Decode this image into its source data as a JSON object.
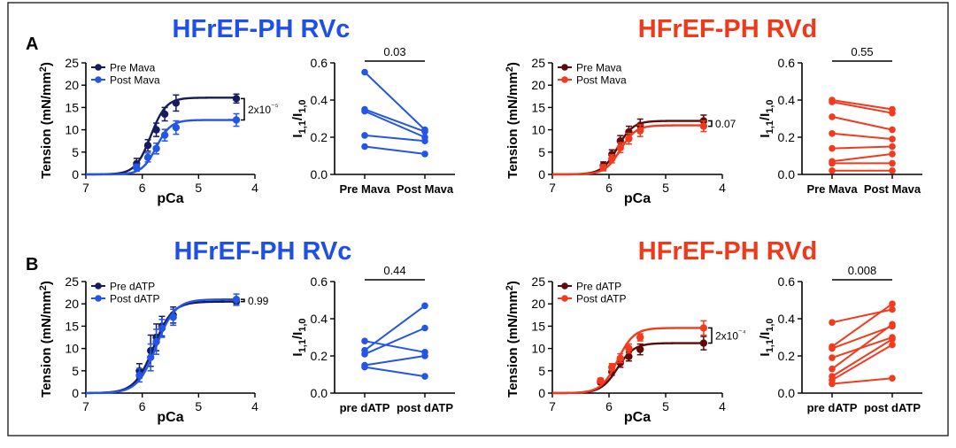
{
  "panel_labels": [
    "A",
    "B"
  ],
  "colors": {
    "rvc_dark": "#141C5E",
    "rvc_light": "#2455E6",
    "rvd_dark": "#5C0A0A",
    "rvd_light": "#F23A1E",
    "title_blue": "#1F4FE8",
    "title_red": "#F0391A",
    "axis": "#000000",
    "frame": "#333333"
  },
  "chart_data": [
    {
      "id": "a-rvc-tension",
      "type": "line",
      "title": "HFrEF-PH RVc",
      "xlabel": "pCa",
      "ylabel": "Tension (mN/mm²)",
      "xlim": [
        7,
        4
      ],
      "ylim": [
        0,
        25
      ],
      "x_ticks": [
        "7",
        "6",
        "5",
        "4"
      ],
      "y_ticks": [
        "0",
        "5",
        "10",
        "15",
        "20",
        "25"
      ],
      "legend_position": "top-left",
      "comparison_label": "2x10⁻⁵",
      "series": [
        {
          "name": "Pre Mava",
          "color_key": "rvc_dark",
          "fit": {
            "top": 17.2,
            "pca50": 5.85,
            "hill": 3.2
          },
          "points": [
            {
              "x": 6.1,
              "y": 2.4,
              "err": 1.2
            },
            {
              "x": 5.9,
              "y": 6.5,
              "err": 1.3
            },
            {
              "x": 5.75,
              "y": 10.0,
              "err": 1.5
            },
            {
              "x": 5.6,
              "y": 13.5,
              "err": 1.5
            },
            {
              "x": 5.4,
              "y": 16.0,
              "err": 1.8
            },
            {
              "x": 4.33,
              "y": 17.0,
              "err": 1.0
            }
          ]
        },
        {
          "name": "Post Mava",
          "color_key": "rvc_light",
          "fit": {
            "top": 12.2,
            "pca50": 5.75,
            "hill": 3.4
          },
          "points": [
            {
              "x": 6.1,
              "y": 1.5,
              "err": 0.8
            },
            {
              "x": 5.9,
              "y": 3.8,
              "err": 1.0
            },
            {
              "x": 5.75,
              "y": 5.8,
              "err": 1.2
            },
            {
              "x": 5.6,
              "y": 8.8,
              "err": 1.3
            },
            {
              "x": 5.4,
              "y": 10.5,
              "err": 1.5
            },
            {
              "x": 4.33,
              "y": 12.2,
              "err": 1.4
            }
          ]
        }
      ]
    },
    {
      "id": "a-rvc-ratio",
      "type": "scatter",
      "title": "",
      "ylabel": "I1,1/I1,0",
      "ylim": [
        0,
        0.6
      ],
      "y_ticks": [
        "0.0",
        "0.2",
        "0.4",
        "0.6"
      ],
      "categories": [
        "Pre Mava",
        "Post Mava"
      ],
      "p_value": "0.03",
      "color_key": "rvc_light",
      "pairs": [
        [
          0.55,
          0.24
        ],
        [
          0.35,
          0.23
        ],
        [
          0.34,
          0.2
        ],
        [
          0.21,
          0.18
        ],
        [
          0.15,
          0.11
        ]
      ]
    },
    {
      "id": "a-rvd-tension",
      "type": "line",
      "title": "HFrEF-PH RVd",
      "xlabel": "pCa",
      "ylabel": "Tension (mN/mm²)",
      "xlim": [
        7,
        4
      ],
      "ylim": [
        0,
        25
      ],
      "x_ticks": [
        "7",
        "6",
        "5",
        "4"
      ],
      "y_ticks": [
        "0",
        "5",
        "10",
        "15",
        "20",
        "25"
      ],
      "legend_position": "top-left",
      "comparison_label": "0.07",
      "series": [
        {
          "name": "Pre Mava",
          "color_key": "rvd_dark",
          "fit": {
            "top": 12.0,
            "pca50": 5.85,
            "hill": 3.2
          },
          "points": [
            {
              "x": 6.1,
              "y": 2.0,
              "err": 0.8
            },
            {
              "x": 5.95,
              "y": 4.5,
              "err": 1.0
            },
            {
              "x": 5.8,
              "y": 7.5,
              "err": 1.2
            },
            {
              "x": 5.65,
              "y": 9.5,
              "err": 1.3
            },
            {
              "x": 5.45,
              "y": 11.0,
              "err": 1.4
            },
            {
              "x": 4.33,
              "y": 12.0,
              "err": 1.3
            }
          ]
        },
        {
          "name": "Post Mava",
          "color_key": "rvd_light",
          "fit": {
            "top": 11.0,
            "pca50": 5.8,
            "hill": 3.2
          },
          "points": [
            {
              "x": 6.1,
              "y": 1.5,
              "err": 0.7
            },
            {
              "x": 5.95,
              "y": 3.5,
              "err": 0.9
            },
            {
              "x": 5.8,
              "y": 6.0,
              "err": 1.1
            },
            {
              "x": 5.65,
              "y": 8.0,
              "err": 1.2
            },
            {
              "x": 5.45,
              "y": 9.8,
              "err": 1.3
            },
            {
              "x": 4.33,
              "y": 10.8,
              "err": 1.2
            }
          ]
        }
      ]
    },
    {
      "id": "a-rvd-ratio",
      "type": "scatter",
      "title": "",
      "ylabel": "I1,1/I1,0",
      "ylim": [
        0,
        0.6
      ],
      "y_ticks": [
        "0.0",
        "0.2",
        "0.4",
        "0.6"
      ],
      "categories": [
        "Pre Mava",
        "Post Mava"
      ],
      "p_value": "0.55",
      "color_key": "rvd_light",
      "pairs": [
        [
          0.4,
          0.35
        ],
        [
          0.39,
          0.33
        ],
        [
          0.31,
          0.24
        ],
        [
          0.22,
          0.19
        ],
        [
          0.14,
          0.15
        ],
        [
          0.07,
          0.11
        ],
        [
          0.06,
          0.06
        ],
        [
          0.02,
          0.02
        ]
      ]
    },
    {
      "id": "b-rvc-tension",
      "type": "line",
      "title": "HFrEF-PH RVc",
      "xlabel": "pCa",
      "ylabel": "Tension (mN/mm²)",
      "xlim": [
        7,
        4
      ],
      "ylim": [
        0,
        25
      ],
      "x_ticks": [
        "7",
        "6",
        "5",
        "4"
      ],
      "y_ticks": [
        "0",
        "5",
        "10",
        "15",
        "20",
        "25"
      ],
      "legend_position": "top-left",
      "comparison_label": "0.99",
      "series": [
        {
          "name": "Pre dATP",
          "color_key": "rvc_dark",
          "fit": {
            "top": 20.5,
            "pca50": 5.8,
            "hill": 2.6
          },
          "points": [
            {
              "x": 6.05,
              "y": 5.0,
              "err": 1.6
            },
            {
              "x": 5.85,
              "y": 9.5,
              "err": 3.5
            },
            {
              "x": 5.75,
              "y": 12.5,
              "err": 3.0
            },
            {
              "x": 5.65,
              "y": 15.0,
              "err": 2.2
            },
            {
              "x": 5.45,
              "y": 17.5,
              "err": 1.8
            },
            {
              "x": 4.33,
              "y": 20.5,
              "err": 0.8
            }
          ]
        },
        {
          "name": "Post dATP",
          "color_key": "rvc_light",
          "fit": {
            "top": 21.0,
            "pca50": 5.75,
            "hill": 2.6
          },
          "points": [
            {
              "x": 6.05,
              "y": 4.0,
              "err": 1.5
            },
            {
              "x": 5.85,
              "y": 8.0,
              "err": 3.0
            },
            {
              "x": 5.75,
              "y": 11.5,
              "err": 2.8
            },
            {
              "x": 5.65,
              "y": 14.5,
              "err": 2.0
            },
            {
              "x": 5.45,
              "y": 17.0,
              "err": 1.8
            },
            {
              "x": 4.33,
              "y": 21.0,
              "err": 1.2
            }
          ]
        }
      ]
    },
    {
      "id": "b-rvc-ratio",
      "type": "scatter",
      "title": "",
      "ylabel": "I1,1/I1,0",
      "ylim": [
        0,
        0.6
      ],
      "y_ticks": [
        "0.0",
        "0.2",
        "0.4",
        "0.6"
      ],
      "categories": [
        "pre dATP",
        "post dATP"
      ],
      "p_value": "0.44",
      "color_key": "rvc_light",
      "pairs": [
        [
          0.28,
          0.22
        ],
        [
          0.23,
          0.47
        ],
        [
          0.21,
          0.35
        ],
        [
          0.15,
          0.2
        ],
        [
          0.14,
          0.09
        ]
      ]
    },
    {
      "id": "b-rvd-tension",
      "type": "line",
      "title": "HFrEF-PH RVd",
      "xlabel": "pCa",
      "ylabel": "Tension (mN/mm²)",
      "xlim": [
        7,
        4
      ],
      "ylim": [
        0,
        25
      ],
      "x_ticks": [
        "7",
        "6",
        "5",
        "4"
      ],
      "y_ticks": [
        "0",
        "5",
        "10",
        "15",
        "20",
        "25"
      ],
      "legend_position": "top-left",
      "comparison_label": "2x10⁻⁴",
      "series": [
        {
          "name": "Pre dATP",
          "color_key": "rvd_dark",
          "fit": {
            "top": 11.2,
            "pca50": 5.85,
            "hill": 3.0
          },
          "points": [
            {
              "x": 6.15,
              "y": 2.5,
              "err": 0.5
            },
            {
              "x": 5.95,
              "y": 4.8,
              "err": 0.8
            },
            {
              "x": 5.8,
              "y": 6.8,
              "err": 1.0
            },
            {
              "x": 5.65,
              "y": 8.2,
              "err": 1.0
            },
            {
              "x": 5.45,
              "y": 9.8,
              "err": 1.2
            },
            {
              "x": 4.33,
              "y": 11.2,
              "err": 1.5
            }
          ]
        },
        {
          "name": "Post dATP",
          "color_key": "rvd_light",
          "fit": {
            "top": 14.6,
            "pca50": 5.85,
            "hill": 3.0
          },
          "points": [
            {
              "x": 6.15,
              "y": 2.8,
              "err": 0.5
            },
            {
              "x": 5.95,
              "y": 5.8,
              "err": 0.8
            },
            {
              "x": 5.8,
              "y": 7.8,
              "err": 1.0
            },
            {
              "x": 5.65,
              "y": 10.0,
              "err": 1.0
            },
            {
              "x": 5.45,
              "y": 12.5,
              "err": 0.8
            },
            {
              "x": 4.33,
              "y": 14.6,
              "err": 1.6
            }
          ]
        }
      ]
    },
    {
      "id": "b-rvd-ratio",
      "type": "scatter",
      "title": "",
      "ylabel": "I1,1/I1,0",
      "ylim": [
        0,
        0.6
      ],
      "y_ticks": [
        "0.0",
        "0.2",
        "0.4",
        "0.6"
      ],
      "categories": [
        "pre dATP",
        "post dATP"
      ],
      "p_value": "0.008",
      "color_key": "rvd_light",
      "pairs": [
        [
          0.38,
          0.45
        ],
        [
          0.25,
          0.48
        ],
        [
          0.24,
          0.36
        ],
        [
          0.19,
          0.3
        ],
        [
          0.13,
          0.37
        ],
        [
          0.09,
          0.29
        ],
        [
          0.07,
          0.26
        ],
        [
          0.05,
          0.08
        ]
      ]
    }
  ]
}
